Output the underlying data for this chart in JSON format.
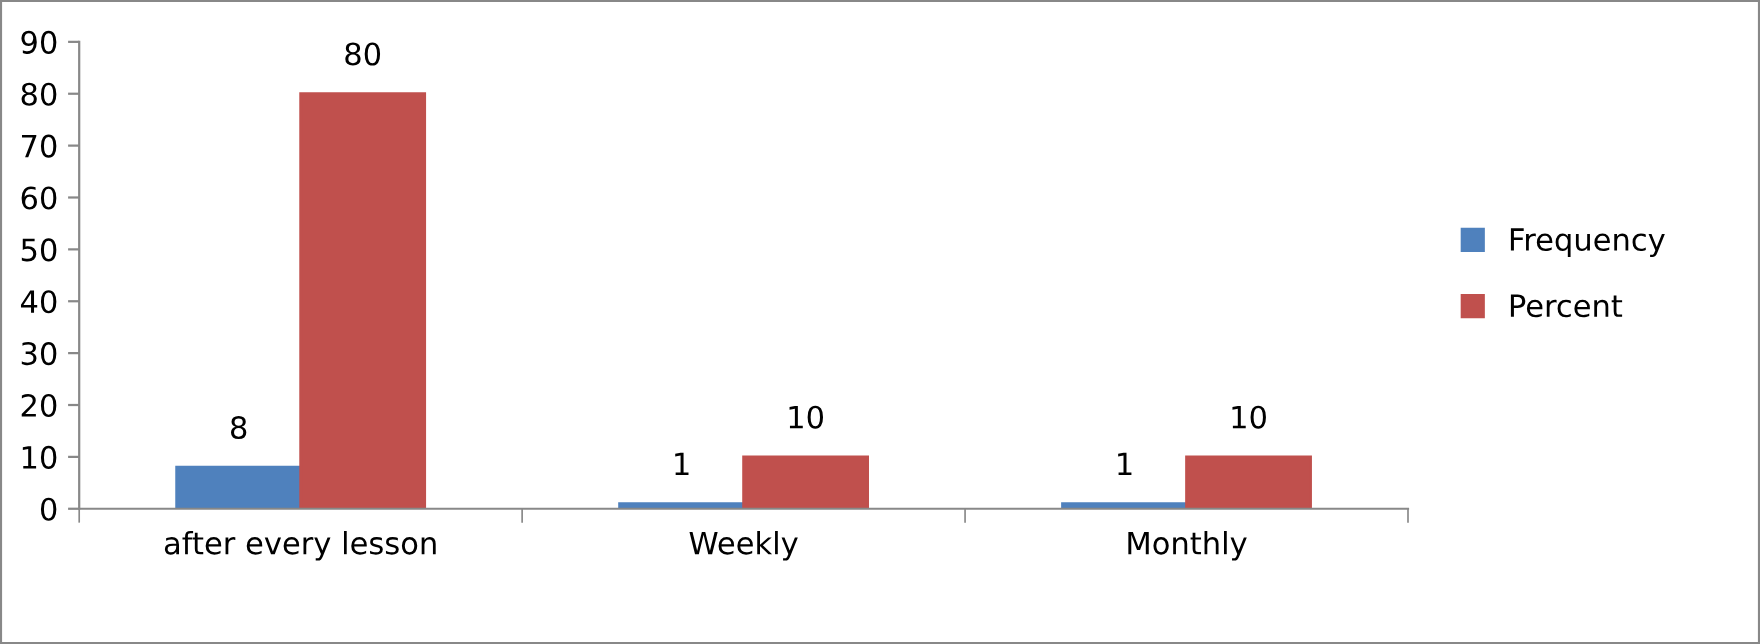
{
  "chart_data": {
    "type": "bar",
    "categories": [
      "after every lesson",
      "Weekly",
      "Monthly"
    ],
    "series": [
      {
        "name": "Frequency",
        "color": "#4f81bd",
        "values": [
          8,
          1,
          1
        ]
      },
      {
        "name": "Percent",
        "color": "#c0504d",
        "values": [
          80,
          10,
          10
        ]
      }
    ],
    "ylim": [
      0,
      90
    ],
    "yticks": [
      0,
      10,
      20,
      30,
      40,
      50,
      60,
      70,
      80,
      90
    ],
    "data_labels": true,
    "grid": false,
    "legend": "right"
  }
}
